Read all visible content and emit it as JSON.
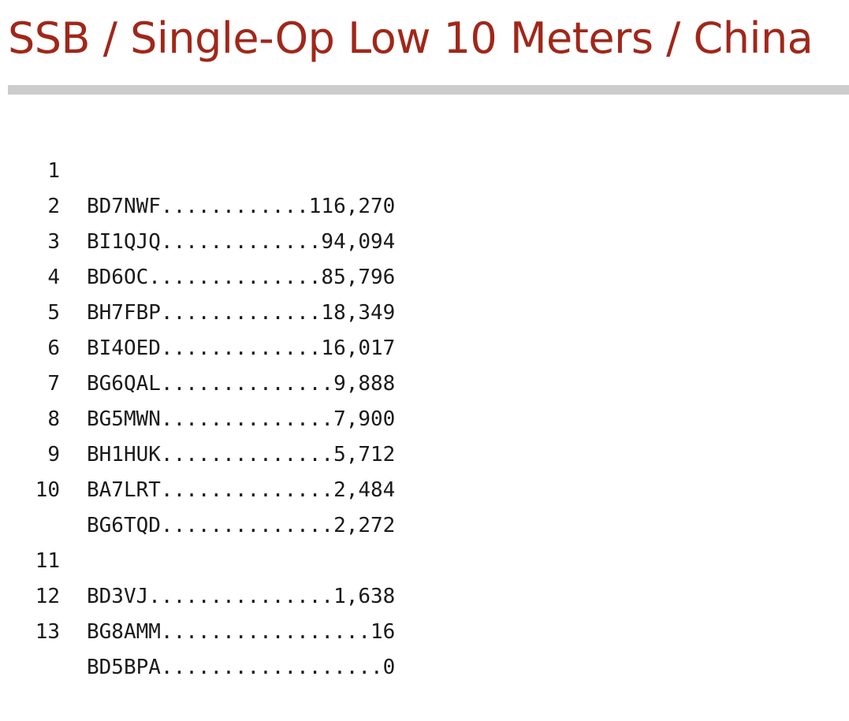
{
  "page": {
    "title": "SSB / Single-Op Low 10 Meters / China"
  },
  "colors": {
    "title": "#a0271a",
    "rule": "#cccccc",
    "text": "#1a1a1a"
  },
  "results_top": [
    {
      "rank": "1",
      "line": "BD7NWF............116,270"
    },
    {
      "rank": "2",
      "line": "BI1QJQ.............94,094"
    },
    {
      "rank": "3",
      "line": "BD6OC..............85,796"
    },
    {
      "rank": "4",
      "line": "BH7FBP.............18,349"
    },
    {
      "rank": "5",
      "line": "BI4OED.............16,017"
    },
    {
      "rank": "6",
      "line": "BG6QAL..............9,888"
    },
    {
      "rank": "7",
      "line": "BG5MWN..............7,900"
    },
    {
      "rank": "8",
      "line": "BH1HUK..............5,712"
    },
    {
      "rank": "9",
      "line": "BA7LRT..............2,484"
    },
    {
      "rank": "10",
      "line": "BG6TQD..............2,272"
    }
  ],
  "results_rest": [
    {
      "rank": "11",
      "line": "BD3VJ...............1,638"
    },
    {
      "rank": "12",
      "line": "BG8AMM.................16"
    },
    {
      "rank": "13",
      "line": "BD5BPA..................0"
    }
  ]
}
